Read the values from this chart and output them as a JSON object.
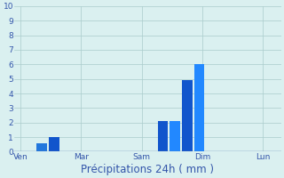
{
  "xlabel": "Précipitations 24h ( mm )",
  "background_color": "#daf0f0",
  "bar_color_dark": "#1155cc",
  "bar_color_light": "#2288ff",
  "grid_color": "#aacccc",
  "axis_line_color": "#5577aa",
  "tick_label_color": "#3355aa",
  "ylim": [
    0,
    10
  ],
  "yticks": [
    0,
    1,
    2,
    3,
    4,
    5,
    6,
    7,
    8,
    9,
    10
  ],
  "bar_positions": [
    0.35,
    0.55,
    2.35,
    2.55,
    2.75,
    2.95
  ],
  "bar_heights": [
    0.6,
    1.0,
    2.1,
    2.1,
    4.9,
    6.0
  ],
  "bar_colors": [
    "#2277dd",
    "#1155cc",
    "#1155cc",
    "#2288ff",
    "#1155cc",
    "#2288ff"
  ],
  "bar_width": 0.17,
  "xtick_positions": [
    0.0,
    1.0,
    2.0,
    3.0,
    4.0
  ],
  "xtick_labels": [
    "Ven",
    "Mar",
    "Sam",
    "Dim",
    "Lun"
  ],
  "vline_positions": [
    0.0,
    1.0,
    2.0,
    3.0,
    4.0
  ],
  "xlim": [
    -0.1,
    4.3
  ],
  "figsize": [
    3.2,
    2.0
  ],
  "dpi": 100,
  "tick_fontsize": 6.5,
  "xlabel_fontsize": 8.5
}
